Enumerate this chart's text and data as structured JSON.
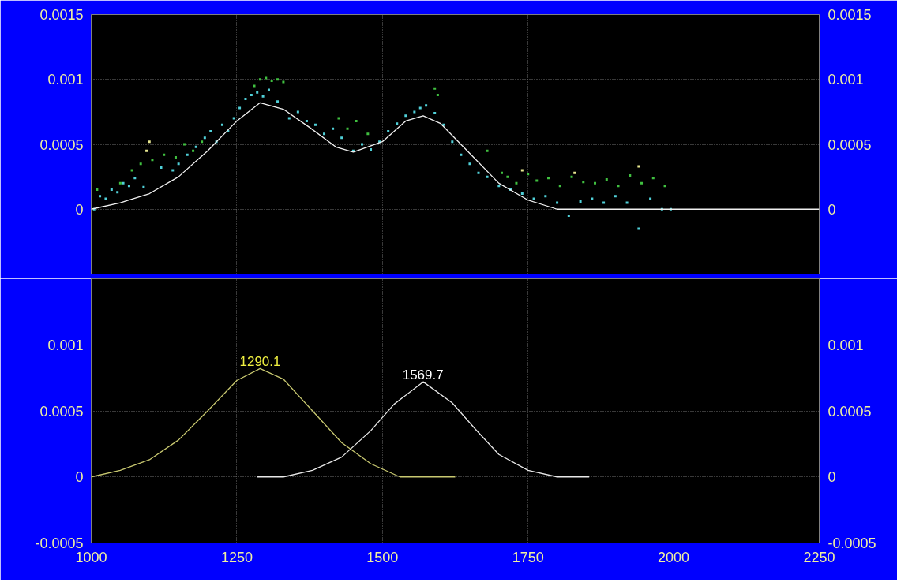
{
  "chart_data": [
    {
      "type": "scatter",
      "xlim": [
        1000,
        2250
      ],
      "xticks": [
        1000,
        1250,
        1500,
        1750,
        2000,
        2250
      ],
      "ylim": [
        -0.0005,
        0.0015
      ],
      "yticks": [
        0,
        0.0005,
        0.001,
        0.0015
      ],
      "y2lim": [
        -0.0005,
        0.0015
      ],
      "y2ticks": [
        0,
        0.0005,
        0.001,
        0.0015
      ],
      "tick_labels": "y",
      "grid": true,
      "series": [
        {
          "color": "#50d0d8",
          "marker": "square",
          "x": [
            1005,
            1015,
            1025,
            1035,
            1045,
            1055,
            1065,
            1075,
            1090,
            1120,
            1140,
            1150,
            1165,
            1180,
            1195,
            1205,
            1215,
            1225,
            1235,
            1245,
            1255,
            1265,
            1275,
            1285,
            1295,
            1305,
            1320,
            1340,
            1355,
            1370,
            1385,
            1400,
            1415,
            1430,
            1450,
            1465,
            1480,
            1495,
            1510,
            1525,
            1540,
            1555,
            1565,
            1575,
            1590,
            1605,
            1620,
            1635,
            1650,
            1665,
            1680,
            1700,
            1720,
            1740,
            1760,
            1780,
            1800,
            1820,
            1840,
            1860,
            1880,
            1900,
            1920,
            1940,
            1960,
            1980,
            1995
          ],
          "values": [
            0,
            0.0001,
            8e-05,
            0.00015,
            0.00013,
            0.0002,
            0.00018,
            0.00024,
            0.00017,
            0.00032,
            0.0003,
            0.00035,
            0.00042,
            0.00048,
            0.00055,
            0.0006,
            0.00052,
            0.00065,
            0.0006,
            0.0007,
            0.00078,
            0.00085,
            0.00088,
            0.0009,
            0.00087,
            0.00092,
            0.00083,
            0.0007,
            0.00075,
            0.00068,
            0.00065,
            0.00058,
            0.00062,
            0.00055,
            0.00045,
            0.0005,
            0.00046,
            0.00052,
            0.0006,
            0.00066,
            0.00072,
            0.00075,
            0.00078,
            0.0008,
            0.00074,
            0.00065,
            0.00052,
            0.00042,
            0.00035,
            0.00028,
            0.00025,
            0.00018,
            0.00015,
            0.00012,
            8e-05,
            0.0001,
            5e-05,
            -5e-05,
            6e-05,
            8e-05,
            5e-05,
            0.0001,
            5e-05,
            -0.00015,
            8e-05,
            0,
            0
          ]
        },
        {
          "color": "#40c040",
          "marker": "square",
          "x": [
            1010,
            1050,
            1070,
            1085,
            1105,
            1125,
            1145,
            1160,
            1175,
            1190,
            1280,
            1290,
            1300,
            1310,
            1320,
            1330,
            1425,
            1440,
            1455,
            1475,
            1590,
            1595,
            1680,
            1705,
            1715,
            1730,
            1750,
            1765,
            1785,
            1805,
            1825,
            1845,
            1865,
            1885,
            1905,
            1925,
            1945,
            1965,
            1985
          ],
          "values": [
            0.00015,
            0.0002,
            0.0003,
            0.00035,
            0.00038,
            0.00042,
            0.0004,
            0.0005,
            0.00045,
            0.00052,
            0.00095,
            0.001,
            0.00101,
            0.00099,
            0.001,
            0.00098,
            0.0007,
            0.00062,
            0.00068,
            0.00058,
            0.00093,
            0.00088,
            0.00045,
            0.00028,
            0.00025,
            0.0002,
            0.00027,
            0.00022,
            0.00024,
            0.00018,
            0.00025,
            0.00021,
            0.0002,
            0.00023,
            0.00018,
            0.00026,
            0.0002,
            0.00024,
            0.00018
          ]
        },
        {
          "color": "#e8e890",
          "marker": "square",
          "x": [
            1095,
            1100,
            1740,
            1830,
            1940
          ],
          "values": [
            0.00045,
            0.00052,
            0.0003,
            0.00028,
            0.00033
          ]
        },
        {
          "type": "line",
          "color": "#f0f0f0",
          "x": [
            1000,
            1050,
            1100,
            1150,
            1200,
            1250,
            1290,
            1330,
            1375,
            1420,
            1450,
            1500,
            1540,
            1570,
            1600,
            1650,
            1700,
            1750,
            1800,
            1850,
            1900,
            2000,
            2250
          ],
          "values": [
            0,
            5e-05,
            0.00012,
            0.00025,
            0.00045,
            0.00068,
            0.00082,
            0.00077,
            0.00063,
            0.00048,
            0.00044,
            0.00052,
            0.00068,
            0.00072,
            0.00066,
            0.00043,
            0.0002,
            7e-05,
            0,
            0,
            0,
            0,
            0
          ]
        }
      ]
    },
    {
      "type": "line",
      "xlim": [
        1000,
        2250
      ],
      "xticks": [
        1000,
        1250,
        1500,
        1750,
        2000,
        2250
      ],
      "ylim": [
        -0.0005,
        0.0015
      ],
      "yticks": [
        -0.0005,
        0,
        0.0005,
        0.001
      ],
      "y2lim": [
        -0.0005,
        0.0015
      ],
      "y2ticks": [
        -0.0005,
        0,
        0.0005,
        0.001
      ],
      "grid": true,
      "annotations": [
        {
          "text": "1290.1",
          "x": 1290.1,
          "y": 0.00082
        },
        {
          "text": "1569.7",
          "x": 1569.7,
          "y": 0.00072
        }
      ],
      "series": [
        {
          "color": "#c8c870",
          "x": [
            1000,
            1050,
            1100,
            1150,
            1200,
            1250,
            1290,
            1330,
            1380,
            1430,
            1480,
            1530,
            1580,
            1625
          ],
          "values": [
            0,
            5e-05,
            0.00013,
            0.00028,
            0.0005,
            0.00073,
            0.00082,
            0.00074,
            0.0005,
            0.00026,
            0.0001,
            0,
            0,
            0
          ]
        },
        {
          "color": "#e8e8e8",
          "x": [
            1285,
            1330,
            1380,
            1430,
            1480,
            1520,
            1570,
            1620,
            1660,
            1700,
            1750,
            1800,
            1855
          ],
          "values": [
            0,
            0,
            5e-05,
            0.00015,
            0.00035,
            0.00055,
            0.00072,
            0.00056,
            0.00036,
            0.00017,
            5e-05,
            0,
            0
          ]
        }
      ]
    }
  ]
}
